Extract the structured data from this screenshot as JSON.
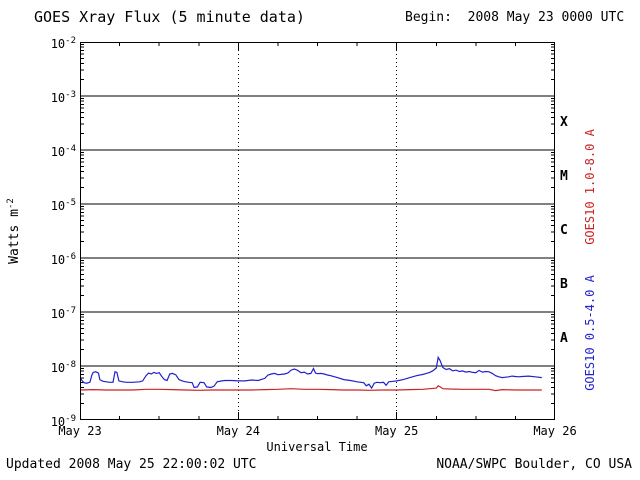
{
  "header": {
    "title": "GOES Xray Flux (5 minute data)",
    "begin_label": "Begin:  2008 May 23 0000 UTC"
  },
  "footer": {
    "updated": "Updated 2008 May 25 22:00:02 UTC",
    "credit": "NOAA/SWPC Boulder, CO USA"
  },
  "chart_data": {
    "type": "line",
    "title": "GOES Xray Flux (5 minute data)",
    "xlabel": "Universal Time",
    "ylabel": "Watts m-2",
    "ylabel_parts": {
      "text": "Watts m",
      "sup": "-2"
    },
    "x_range_hours": [
      0,
      72
    ],
    "x_ticks": [
      {
        "hours": 0,
        "label": "May 23"
      },
      {
        "hours": 24,
        "label": "May 24"
      },
      {
        "hours": 48,
        "label": "May 25"
      },
      {
        "hours": 72,
        "label": "May 26"
      }
    ],
    "y_exponents": [
      -2,
      -3,
      -4,
      -5,
      -6,
      -7,
      -8,
      -9
    ],
    "y_top_exponent": -2,
    "y_bottom_exponent": -9,
    "gridlines": {
      "horizontal_exponents": [
        -3,
        -4,
        -5,
        -6,
        -7,
        -8
      ],
      "vertical_hours": [
        24,
        48
      ],
      "style": "horizontal solid black, vertical dotted black"
    },
    "flare_classes": [
      {
        "label": "X",
        "between_exponents": [
          -4,
          -3
        ]
      },
      {
        "label": "M",
        "between_exponents": [
          -5,
          -4
        ]
      },
      {
        "label": "C",
        "between_exponents": [
          -6,
          -5
        ]
      },
      {
        "label": "B",
        "between_exponents": [
          -7,
          -6
        ]
      },
      {
        "label": "A",
        "between_exponents": [
          -8,
          -7
        ]
      }
    ],
    "series": [
      {
        "name": "GOES10 1.0-8.0 A",
        "color": "#cc2222",
        "points": [
          [
            0,
            3.6e-09
          ],
          [
            2,
            3.65e-09
          ],
          [
            4,
            3.6e-09
          ],
          [
            6,
            3.6e-09
          ],
          [
            8,
            3.6e-09
          ],
          [
            10,
            3.7e-09
          ],
          [
            12,
            3.7e-09
          ],
          [
            14,
            3.65e-09
          ],
          [
            16,
            3.6e-09
          ],
          [
            18,
            3.55e-09
          ],
          [
            20,
            3.6e-09
          ],
          [
            22,
            3.6e-09
          ],
          [
            24,
            3.6e-09
          ],
          [
            26,
            3.6e-09
          ],
          [
            28,
            3.65e-09
          ],
          [
            30,
            3.7e-09
          ],
          [
            32,
            3.8e-09
          ],
          [
            34,
            3.7e-09
          ],
          [
            36,
            3.7e-09
          ],
          [
            38,
            3.65e-09
          ],
          [
            40,
            3.6e-09
          ],
          [
            42,
            3.6e-09
          ],
          [
            44,
            3.55e-09
          ],
          [
            46,
            3.6e-09
          ],
          [
            48,
            3.6e-09
          ],
          [
            50,
            3.65e-09
          ],
          [
            52,
            3.7e-09
          ],
          [
            54,
            3.9e-09
          ],
          [
            54.3,
            4.3e-09
          ],
          [
            54.6,
            4.1e-09
          ],
          [
            55,
            3.8e-09
          ],
          [
            56,
            3.75e-09
          ],
          [
            58,
            3.7e-09
          ],
          [
            60,
            3.7e-09
          ],
          [
            62,
            3.7e-09
          ],
          [
            63,
            3.5e-09
          ],
          [
            64,
            3.65e-09
          ],
          [
            66,
            3.6e-09
          ],
          [
            68,
            3.6e-09
          ],
          [
            70,
            3.6e-09
          ]
        ]
      },
      {
        "name": "GOES10 0.5-4.0 A",
        "color": "#2222cc",
        "points": [
          [
            0,
            6.2e-09
          ],
          [
            0.3,
            5.4e-09
          ],
          [
            0.6,
            4.9e-09
          ],
          [
            1,
            4.8e-09
          ],
          [
            1.5,
            5e-09
          ],
          [
            1.8,
            6.8e-09
          ],
          [
            2,
            7.6e-09
          ],
          [
            2.4,
            7.8e-09
          ],
          [
            2.8,
            7.4e-09
          ],
          [
            3,
            5.6e-09
          ],
          [
            3.5,
            5.2e-09
          ],
          [
            4,
            5.1e-09
          ],
          [
            4.5,
            5e-09
          ],
          [
            5,
            5e-09
          ],
          [
            5.3,
            7.8e-09
          ],
          [
            5.6,
            7.6e-09
          ],
          [
            5.9,
            5.3e-09
          ],
          [
            6.5,
            5.1e-09
          ],
          [
            7,
            5e-09
          ],
          [
            8,
            5e-09
          ],
          [
            9,
            5.1e-09
          ],
          [
            9.5,
            5.3e-09
          ],
          [
            10,
            6.6e-09
          ],
          [
            10.4,
            7.4e-09
          ],
          [
            10.8,
            7.1e-09
          ],
          [
            11.2,
            7.6e-09
          ],
          [
            11.6,
            7.3e-09
          ],
          [
            12,
            7.5e-09
          ],
          [
            12.4,
            6.4e-09
          ],
          [
            12.8,
            5.6e-09
          ],
          [
            13.2,
            5.4e-09
          ],
          [
            13.6,
            7.1e-09
          ],
          [
            14,
            7.3e-09
          ],
          [
            14.5,
            6.9e-09
          ],
          [
            15,
            5.6e-09
          ],
          [
            15.5,
            5.3e-09
          ],
          [
            16,
            5.1e-09
          ],
          [
            16.5,
            5e-09
          ],
          [
            17,
            4.9e-09
          ],
          [
            17.3,
            4e-09
          ],
          [
            17.8,
            4.1e-09
          ],
          [
            18.2,
            5e-09
          ],
          [
            18.8,
            4.9e-09
          ],
          [
            19.2,
            4.1e-09
          ],
          [
            19.8,
            4e-09
          ],
          [
            20.3,
            4.2e-09
          ],
          [
            20.8,
            5.1e-09
          ],
          [
            21.5,
            5.3e-09
          ],
          [
            22,
            5.4e-09
          ],
          [
            23,
            5.4e-09
          ],
          [
            24,
            5.3e-09
          ],
          [
            25,
            5.3e-09
          ],
          [
            26,
            5.5e-09
          ],
          [
            27,
            5.4e-09
          ],
          [
            28,
            5.9e-09
          ],
          [
            28.5,
            6.8e-09
          ],
          [
            29,
            7.1e-09
          ],
          [
            29.5,
            7.3e-09
          ],
          [
            30,
            6.9e-09
          ],
          [
            30.5,
            7e-09
          ],
          [
            31,
            7.1e-09
          ],
          [
            31.5,
            7.4e-09
          ],
          [
            32,
            8.4e-09
          ],
          [
            32.5,
            8.8e-09
          ],
          [
            33,
            8.3e-09
          ],
          [
            33.5,
            7.5e-09
          ],
          [
            34,
            7.7e-09
          ],
          [
            34.5,
            7.1e-09
          ],
          [
            35,
            7.3e-09
          ],
          [
            35.4,
            9e-09
          ],
          [
            35.7,
            7.4e-09
          ],
          [
            36,
            7.2e-09
          ],
          [
            36.5,
            7.3e-09
          ],
          [
            37,
            7.1e-09
          ],
          [
            37.5,
            6.8e-09
          ],
          [
            38,
            6.6e-09
          ],
          [
            39,
            6.1e-09
          ],
          [
            40,
            5.6e-09
          ],
          [
            41,
            5.4e-09
          ],
          [
            42,
            5.1e-09
          ],
          [
            43,
            4.9e-09
          ],
          [
            43.4,
            4.3e-09
          ],
          [
            43.8,
            4.6e-09
          ],
          [
            44.2,
            3.9e-09
          ],
          [
            44.6,
            4.8e-09
          ],
          [
            45,
            5e-09
          ],
          [
            45.5,
            4.9e-09
          ],
          [
            46,
            5e-09
          ],
          [
            46.4,
            4.4e-09
          ],
          [
            46.8,
            5.1e-09
          ],
          [
            47.5,
            5.2e-09
          ],
          [
            48,
            5.3e-09
          ],
          [
            49,
            5.6e-09
          ],
          [
            50,
            6.1e-09
          ],
          [
            51,
            6.6e-09
          ],
          [
            52,
            7e-09
          ],
          [
            52.5,
            7.3e-09
          ],
          [
            53,
            7.6e-09
          ],
          [
            53.5,
            8.2e-09
          ],
          [
            54,
            9.2e-09
          ],
          [
            54.3,
            1.45e-08
          ],
          [
            54.6,
            1.25e-08
          ],
          [
            55,
            9.4e-09
          ],
          [
            55.5,
            8.6e-09
          ],
          [
            56,
            8.9e-09
          ],
          [
            56.5,
            8.1e-09
          ],
          [
            57,
            8.4e-09
          ],
          [
            57.5,
            7.9e-09
          ],
          [
            58,
            8.1e-09
          ],
          [
            58.5,
            7.7e-09
          ],
          [
            59,
            7.9e-09
          ],
          [
            59.5,
            7.6e-09
          ],
          [
            60,
            7.5e-09
          ],
          [
            60.5,
            8.3e-09
          ],
          [
            61,
            7.7e-09
          ],
          [
            61.5,
            7.9e-09
          ],
          [
            62,
            7.8e-09
          ],
          [
            62.5,
            7.3e-09
          ],
          [
            63,
            6.6e-09
          ],
          [
            63.5,
            6.3e-09
          ],
          [
            64,
            6.1e-09
          ],
          [
            64.5,
            6.2e-09
          ],
          [
            65,
            6.3e-09
          ],
          [
            65.5,
            6.5e-09
          ],
          [
            66,
            6.4e-09
          ],
          [
            66.5,
            6.3e-09
          ],
          [
            67,
            6.4e-09
          ],
          [
            68,
            6.5e-09
          ],
          [
            69,
            6.3e-09
          ],
          [
            70,
            6.1e-09
          ]
        ]
      }
    ]
  }
}
